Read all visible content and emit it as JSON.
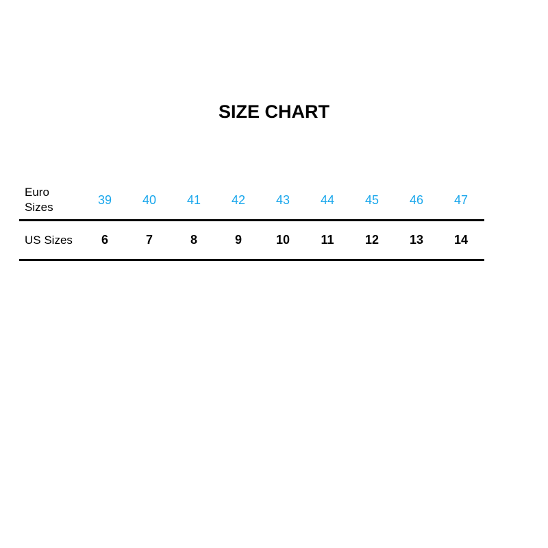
{
  "title": "SIZE CHART",
  "rows": {
    "euro": {
      "label_line1": "Euro",
      "label_line2": "Sizes",
      "values": [
        "39",
        "40",
        "41",
        "42",
        "43",
        "44",
        "45",
        "46",
        "47"
      ],
      "color": "#1aa7ec"
    },
    "us": {
      "label": "US Sizes",
      "values": [
        "6",
        "7",
        "8",
        "9",
        "10",
        "11",
        "12",
        "13",
        "14"
      ],
      "color": "#000000"
    }
  }
}
